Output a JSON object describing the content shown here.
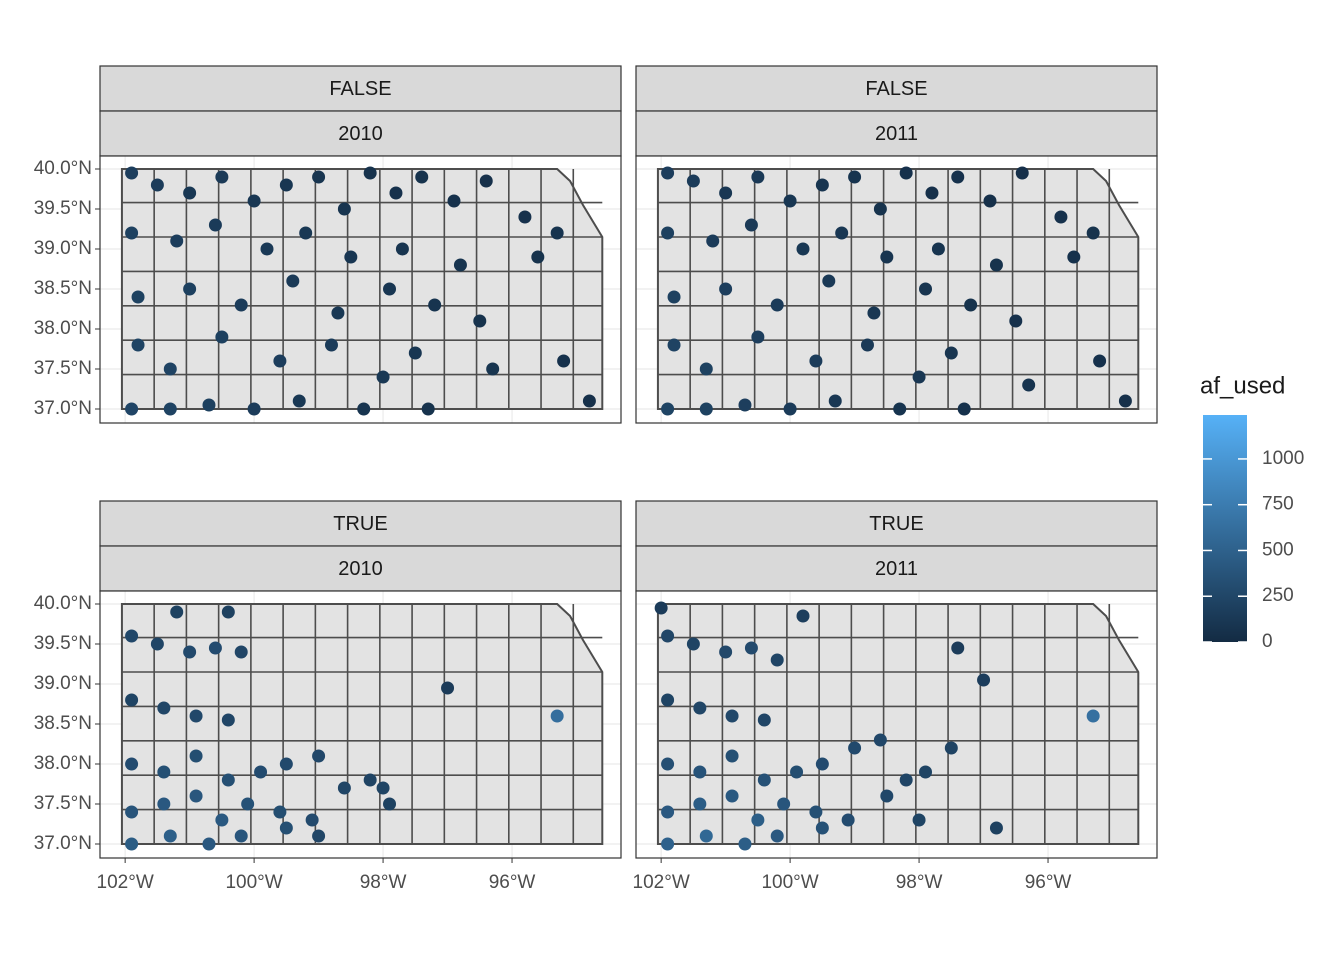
{
  "chart_data": {
    "type": "map",
    "xlim": [
      -102.39,
      -94.31
    ],
    "ylim": [
      36.825,
      40.1625
    ],
    "xticks": [
      {
        "value": -102,
        "label": "102°W"
      },
      {
        "value": -100,
        "label": "100°W"
      },
      {
        "value": -98,
        "label": "98°W"
      },
      {
        "value": -96,
        "label": "96°W"
      }
    ],
    "yticks": [
      {
        "value": 37,
        "label": "37.0°N"
      },
      {
        "value": 37.5,
        "label": "37.5°N"
      },
      {
        "value": 38,
        "label": "38.0°N"
      },
      {
        "value": 38.5,
        "label": "38.5°N"
      },
      {
        "value": 39,
        "label": "39.0°N"
      },
      {
        "value": 39.5,
        "label": "39.5°N"
      },
      {
        "value": 40,
        "label": "40.0°N"
      }
    ],
    "grid": true,
    "colorbar": {
      "title": "af_used",
      "limits": [
        0,
        1240
      ],
      "ticks": [
        0,
        250,
        500,
        750,
        1000
      ],
      "low": "#132b43",
      "high": "#56b1f7"
    },
    "panels": [
      {
        "strips": [
          "FALSE",
          "2010"
        ],
        "x": [
          -101.9,
          -101.5,
          -101.0,
          -100.5,
          -100.0,
          -99.5,
          -99.0,
          -98.6,
          -98.2,
          -97.8,
          -97.4,
          -96.9,
          -96.4,
          -95.8,
          -95.3,
          -101.9,
          -101.2,
          -100.6,
          -99.8,
          -99.2,
          -98.5,
          -97.7,
          -96.8,
          -95.6,
          -101.8,
          -101.0,
          -100.2,
          -99.4,
          -98.7,
          -97.9,
          -97.2,
          -96.5,
          -101.8,
          -101.3,
          -100.5,
          -99.6,
          -98.8,
          -98.0,
          -97.5,
          -96.3,
          -95.2,
          -94.8,
          -101.9,
          -101.3,
          -100.7,
          -100.0,
          -99.3,
          -98.3,
          -97.3
        ],
        "y": [
          39.95,
          39.8,
          39.7,
          39.9,
          39.6,
          39.8,
          39.9,
          39.5,
          39.95,
          39.7,
          39.9,
          39.6,
          39.85,
          39.4,
          39.2,
          39.2,
          39.1,
          39.3,
          39.0,
          39.2,
          38.9,
          39.0,
          38.8,
          38.9,
          38.4,
          38.5,
          38.3,
          38.6,
          38.2,
          38.5,
          38.3,
          38.1,
          37.8,
          37.5,
          37.9,
          37.6,
          37.8,
          37.4,
          37.7,
          37.5,
          37.6,
          37.1,
          37.0,
          37.0,
          37.05,
          37.0,
          37.1,
          37.0,
          37.0
        ],
        "values": [
          180,
          160,
          120,
          140,
          110,
          100,
          90,
          80,
          70,
          60,
          70,
          60,
          50,
          60,
          80,
          200,
          170,
          150,
          130,
          120,
          100,
          90,
          80,
          70,
          210,
          190,
          160,
          140,
          120,
          100,
          80,
          70,
          230,
          220,
          190,
          170,
          150,
          120,
          100,
          90,
          60,
          50,
          240,
          220,
          190,
          160,
          120,
          90,
          70
        ]
      },
      {
        "strips": [
          "FALSE",
          "2011"
        ],
        "x": [
          -101.9,
          -101.5,
          -101.0,
          -100.5,
          -100.0,
          -99.5,
          -99.0,
          -98.6,
          -98.2,
          -97.8,
          -97.4,
          -96.9,
          -96.4,
          -95.8,
          -95.3,
          -101.9,
          -101.2,
          -100.6,
          -99.8,
          -99.2,
          -98.5,
          -97.7,
          -96.8,
          -95.6,
          -101.8,
          -101.0,
          -100.2,
          -99.4,
          -98.7,
          -97.9,
          -97.2,
          -96.5,
          -101.8,
          -101.3,
          -100.5,
          -99.6,
          -98.8,
          -98.0,
          -97.5,
          -96.3,
          -95.2,
          -94.8,
          -101.9,
          -101.3,
          -100.7,
          -100.0,
          -99.3,
          -98.3,
          -97.3
        ],
        "y": [
          39.95,
          39.85,
          39.7,
          39.9,
          39.6,
          39.8,
          39.9,
          39.5,
          39.95,
          39.7,
          39.9,
          39.6,
          39.95,
          39.4,
          39.2,
          39.2,
          39.1,
          39.3,
          39.0,
          39.2,
          38.9,
          39.0,
          38.8,
          38.9,
          38.4,
          38.5,
          38.3,
          38.6,
          38.2,
          38.5,
          38.3,
          38.1,
          37.8,
          37.5,
          37.9,
          37.6,
          37.8,
          37.4,
          37.7,
          37.3,
          37.6,
          37.1,
          37.0,
          37.0,
          37.05,
          37.0,
          37.1,
          37.0,
          37.0
        ],
        "values": [
          170,
          150,
          110,
          130,
          100,
          90,
          80,
          70,
          60,
          50,
          60,
          50,
          50,
          60,
          70,
          190,
          160,
          140,
          120,
          110,
          90,
          80,
          70,
          60,
          200,
          180,
          150,
          130,
          110,
          90,
          70,
          60,
          220,
          210,
          180,
          160,
          140,
          110,
          90,
          80,
          60,
          50,
          230,
          210,
          180,
          150,
          110,
          80,
          60
        ]
      },
      {
        "strips": [
          "TRUE",
          "2010"
        ],
        "x": [
          -101.9,
          -101.5,
          -101.0,
          -100.6,
          -100.2,
          -101.9,
          -101.4,
          -100.9,
          -100.4,
          -101.9,
          -101.4,
          -100.9,
          -100.4,
          -99.9,
          -99.5,
          -99.0,
          -98.6,
          -98.2,
          -97.9,
          -101.9,
          -101.4,
          -100.9,
          -100.5,
          -100.1,
          -99.6,
          -99.1,
          -101.9,
          -101.3,
          -100.7,
          -100.2,
          -99.5,
          -101.2,
          -100.4,
          -97.0,
          -95.3,
          -99.0,
          -98.0
        ],
        "y": [
          39.6,
          39.5,
          39.4,
          39.45,
          39.4,
          38.8,
          38.7,
          38.6,
          38.55,
          38.0,
          37.9,
          38.1,
          37.8,
          37.9,
          38.0,
          38.1,
          37.7,
          37.8,
          37.5,
          37.4,
          37.5,
          37.6,
          37.3,
          37.5,
          37.4,
          37.3,
          37.0,
          37.1,
          37.0,
          37.1,
          37.2,
          39.9,
          39.9,
          38.95,
          38.6,
          37.1,
          37.7
        ],
        "values": [
          260,
          240,
          280,
          300,
          250,
          230,
          250,
          270,
          240,
          300,
          340,
          320,
          330,
          300,
          280,
          260,
          240,
          220,
          210,
          380,
          420,
          400,
          430,
          360,
          320,
          290,
          450,
          480,
          420,
          390,
          330,
          210,
          200,
          150,
          620,
          250,
          230
        ]
      },
      {
        "strips": [
          "TRUE",
          "2011"
        ],
        "x": [
          -101.9,
          -101.5,
          -101.0,
          -100.6,
          -100.2,
          -101.9,
          -101.4,
          -100.9,
          -100.4,
          -101.9,
          -101.4,
          -100.9,
          -100.4,
          -99.9,
          -99.5,
          -99.0,
          -98.6,
          -98.2,
          -97.9,
          -97.5,
          -101.9,
          -101.4,
          -100.9,
          -100.5,
          -100.1,
          -99.6,
          -99.1,
          -98.5,
          -101.9,
          -101.3,
          -100.7,
          -100.2,
          -99.5,
          -102.0,
          -99.8,
          -97.4,
          -97.0,
          -95.3,
          -98.0,
          -96.8
        ],
        "y": [
          39.6,
          39.5,
          39.4,
          39.45,
          39.3,
          38.8,
          38.7,
          38.6,
          38.55,
          38.0,
          37.9,
          38.1,
          37.8,
          37.9,
          38.0,
          38.2,
          38.3,
          37.8,
          37.9,
          38.2,
          37.4,
          37.5,
          37.6,
          37.3,
          37.5,
          37.4,
          37.3,
          37.6,
          37.0,
          37.1,
          37.0,
          37.1,
          37.2,
          39.95,
          39.85,
          39.45,
          39.05,
          38.6,
          37.3,
          37.2
        ],
        "values": [
          250,
          230,
          270,
          290,
          240,
          230,
          250,
          270,
          240,
          330,
          370,
          340,
          350,
          320,
          300,
          280,
          260,
          240,
          230,
          220,
          420,
          460,
          430,
          470,
          390,
          340,
          300,
          260,
          500,
          560,
          470,
          420,
          350,
          150,
          180,
          160,
          170,
          640,
          230,
          200
        ]
      }
    ]
  }
}
